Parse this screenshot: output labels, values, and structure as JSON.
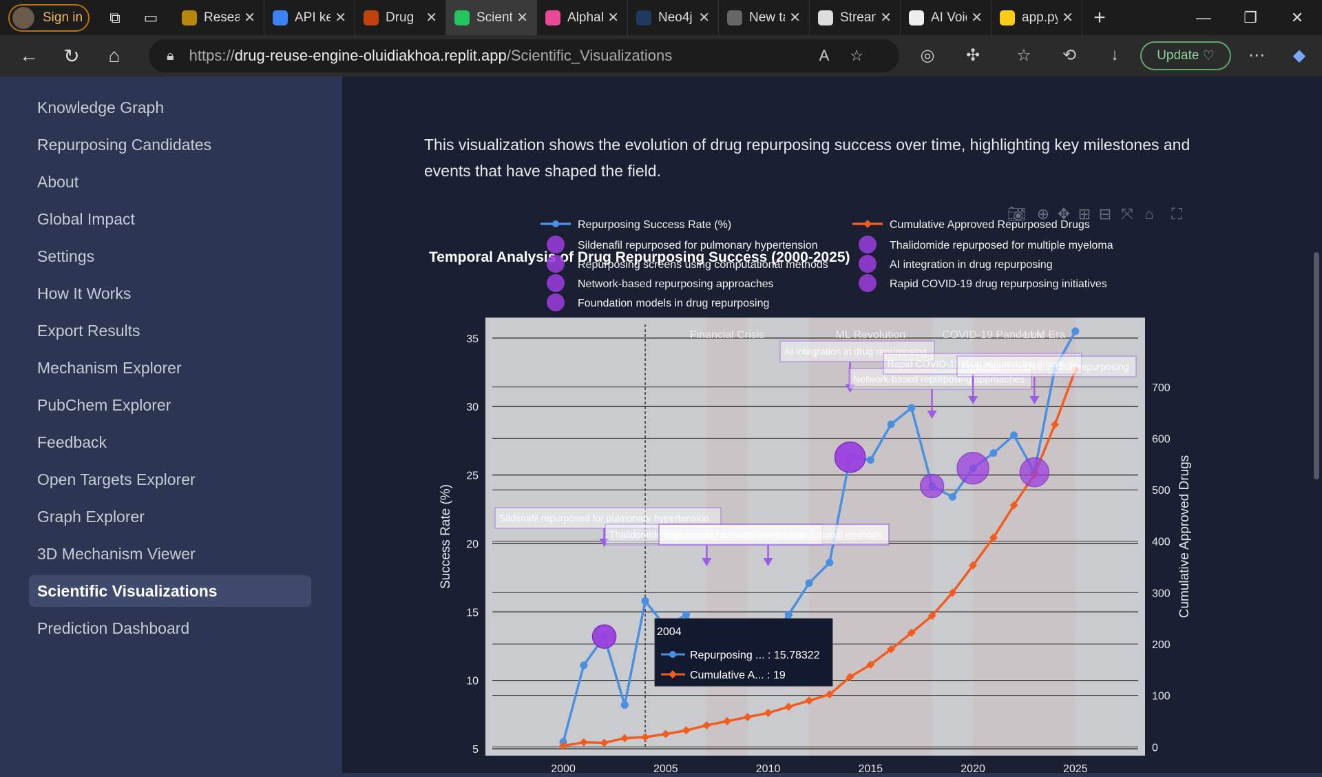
{
  "browser": {
    "signin": "Sign in",
    "tabs": [
      {
        "title": "Research",
        "color": "#b8860b"
      },
      {
        "title": "API keys",
        "color": "#3b82f6"
      },
      {
        "title": "Drug",
        "color": "#c2410c"
      },
      {
        "title": "Scientific",
        "color": "#22c55e",
        "active": true
      },
      {
        "title": "AlphaFold",
        "color": "#ec4899"
      },
      {
        "title": "Neo4j",
        "color": "#1e3a5f"
      },
      {
        "title": "New tab",
        "color": "#666666"
      },
      {
        "title": "Streamlit",
        "color": "#dddddd"
      },
      {
        "title": "AI Voice",
        "color": "#eeeeee"
      },
      {
        "title": "app.py",
        "color": "#facc15"
      }
    ],
    "url_prefix": "https://",
    "url_host": "drug-reuse-engine-oluidiakhoa.replit.app",
    "url_path": "/Scientific_Visualizations",
    "update_label": "Update"
  },
  "sidebar": {
    "items": [
      "Knowledge Graph",
      "Repurposing Candidates",
      "About",
      "Global Impact",
      "Settings",
      "How It Works",
      "Export Results",
      "Mechanism Explorer",
      "PubChem Explorer",
      "Feedback",
      "Open Targets Explorer",
      "Graph Explorer",
      "3D Mechanism Viewer",
      "Scientific Visualizations",
      "Prediction Dashboard"
    ],
    "active_index": 13
  },
  "main": {
    "description": "This visualization shows the evolution of drug repurposing success over time, highlighting key milestones and events that have shaped the field."
  },
  "chart_data": {
    "type": "line",
    "title": "Temporal Analysis of Drug Repurposing Success (2000-2025)",
    "xlabel": "",
    "ylabel": "Success Rate (%)",
    "y2label": "Cumulative Approved Drugs",
    "xlim": [
      1996.2,
      2028.4
    ],
    "ylim": [
      4.5,
      36.5
    ],
    "y2lim": [
      -17,
      835
    ],
    "x_ticks": [
      2000,
      2005,
      2010,
      2015,
      2020,
      2025
    ],
    "y_ticks": [
      5,
      10,
      15,
      20,
      25,
      30,
      35
    ],
    "y2_ticks": [
      0,
      100,
      200,
      300,
      400,
      500,
      600,
      700
    ],
    "x": [
      2000,
      2001,
      2002,
      2003,
      2004,
      2005,
      2006,
      2007,
      2008,
      2009,
      2010,
      2011,
      2012,
      2013,
      2014,
      2015,
      2016,
      2017,
      2018,
      2019,
      2020,
      2021,
      2022,
      2023,
      2024,
      2025
    ],
    "series": [
      {
        "name": "Repurposing Success Rate (%)",
        "axis": "y",
        "color": "#4a90e2",
        "values": [
          5.5,
          11.1,
          13.2,
          8.2,
          15.8,
          13.9,
          14.8,
          12.1,
          11.5,
          12.2,
          12.9,
          14.8,
          17.1,
          18.6,
          26.3,
          26.1,
          28.7,
          29.9,
          24.2,
          23.4,
          25.5,
          26.6,
          27.9,
          25.2,
          32.8,
          35.5
        ]
      },
      {
        "name": "Cumulative Approved Repurposed Drugs",
        "axis": "y2",
        "color": "#f25c1f",
        "values": [
          2,
          9,
          8,
          17,
          19,
          25,
          32,
          42,
          50,
          58,
          66,
          78,
          90,
          102,
          136,
          160,
          190,
          222,
          255,
          300,
          353,
          407,
          470,
          530,
          627,
          733
        ]
      }
    ],
    "milestones": [
      {
        "label": "Sildenafil repurposed for pulmonary hypertension",
        "x": 2002,
        "y": 13.2,
        "size": 34
      },
      {
        "label": "Thalidomide repurposed for multiple myeloma",
        "x": 2002,
        "y": 13.2,
        "size": 34
      },
      {
        "label": "Repurposing screens using computational methods",
        "x": 2014,
        "y": 26.3,
        "size": 44
      },
      {
        "label": "AI integration in drug repurposing",
        "x": 2018,
        "y": 24.2,
        "size": 34
      },
      {
        "label": "Network-based repurposing approaches",
        "x": 2014,
        "y": 26.3,
        "size": 44
      },
      {
        "label": "Rapid COVID-19 drug repurposing initiatives",
        "x": 2020,
        "y": 25.5,
        "size": 46
      },
      {
        "label": "Foundation models in drug repurposing",
        "x": 2023,
        "y": 25.2,
        "size": 42
      }
    ],
    "annotations": [
      {
        "text": "Sildenafil repurposed for pulmonary hypertension",
        "x": 2002
      },
      {
        "text": "Thalidomide repurposed for multiple myeloma",
        "x": 2002
      },
      {
        "text": "Repurposing screens using computational methods",
        "x": 2007
      },
      {
        "text": "Repurposing screens using computational methods",
        "x": 2010
      },
      {
        "text": "AI integration in drug repurposing",
        "x": 2014
      },
      {
        "text": "Network-based repurposing approaches",
        "x": 2018
      },
      {
        "text": "Rapid COVID-19 drug repurposing initiatives",
        "x": 2020
      },
      {
        "text": "Foundation models in drug repurposing",
        "x": 2023
      }
    ],
    "events": [
      {
        "label": "Financial Crisis",
        "start": 2007,
        "end": 2009
      },
      {
        "label": "ML Revolution",
        "start": 2012,
        "end": 2018
      },
      {
        "label": "COVID-19 Pandemic",
        "start": 2020,
        "end": 2022
      },
      {
        "label": "LLM Era",
        "start": 2022,
        "end": 2025
      }
    ],
    "hover": {
      "x_label": "2004",
      "rows": [
        {
          "name": "Repurposing ...",
          "value": "15.78322",
          "color": "#4a90e2"
        },
        {
          "name": "Cumulative A...",
          "value": "19",
          "color": "#f25c1f"
        }
      ]
    },
    "legend_placement": "top",
    "grid": true
  }
}
